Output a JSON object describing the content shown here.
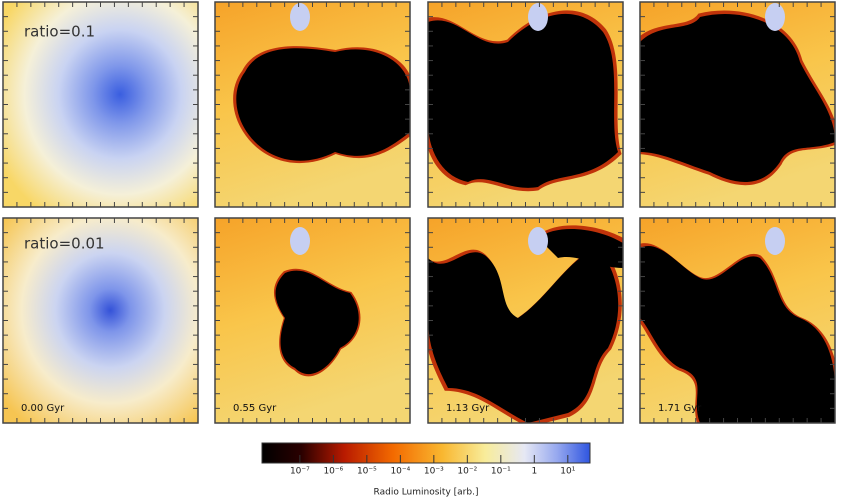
{
  "rows": [
    {
      "label": "ratio=0.1"
    },
    {
      "label": "ratio=0.01"
    }
  ],
  "times": [
    "0.00 Gyr",
    "0.55 Gyr",
    "1.13 Gyr",
    "1.71 Gyr"
  ],
  "colorbar": {
    "label": "Radio Luminosity  [arb.]",
    "log": true,
    "lim": [
      7.4e-09,
      46
    ],
    "ticks": [
      {
        "value": 1e-07,
        "label": "10⁻⁷"
      },
      {
        "value": 1e-06,
        "label": "10⁻⁶"
      },
      {
        "value": 1e-05,
        "label": "10⁻⁵"
      },
      {
        "value": 0.0001,
        "label": "10⁻⁴"
      },
      {
        "value": 0.001,
        "label": "10⁻³"
      },
      {
        "value": 0.01,
        "label": "10⁻²"
      },
      {
        "value": 0.1,
        "label": "10⁻¹"
      },
      1,
      {
        "value": 10,
        "label": "10¹"
      }
    ]
  }
}
